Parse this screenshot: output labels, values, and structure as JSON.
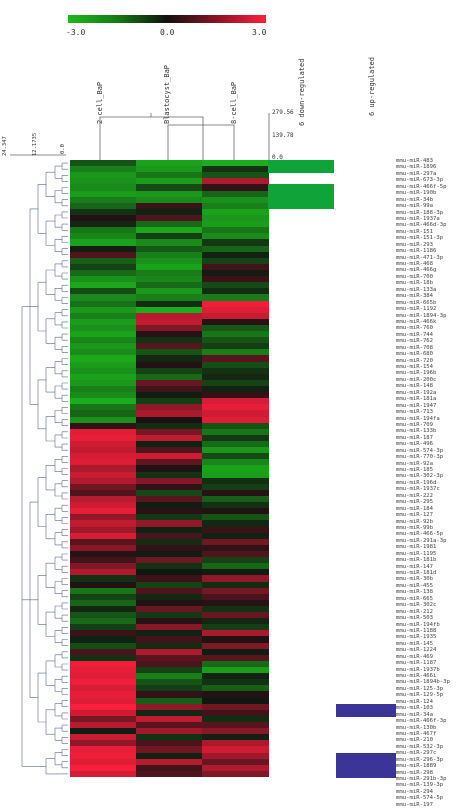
{
  "colorbar": {
    "min_label": "-3.0",
    "mid_label": "0.0",
    "max_label": "3.0",
    "colors": [
      "#1db81d",
      "#111111",
      "#ff1f3c"
    ]
  },
  "columns": [
    "2-cell_BaP",
    "Blastocyst_BaP",
    "8-cell_BaP"
  ],
  "col_dendrogram_ticks": [
    "279.56",
    "139.78",
    "0.0"
  ],
  "row_dendrogram_ticks": [
    "24.347",
    "12.1735",
    "0.0"
  ],
  "regulation_labels": {
    "down": "6 down-regulated",
    "up": "6 up-regulated",
    "down_color": "#10a33a",
    "up_color": "#3a3596"
  },
  "chart_data": {
    "type": "heatmap",
    "title": "",
    "color_scale": [
      -3.0,
      0.0,
      3.0
    ],
    "columns": [
      "2-cell_BaP",
      "Blastocyst_BaP",
      "8-cell_BaP"
    ],
    "rows": [
      "mmu-miR-483",
      "mmu-miR-1896",
      "mmu-miR-297a",
      "mmu-miR-673-3p",
      "mmu-miR-466f-5p",
      "mmu-miR-190b",
      "mmu-miR-34b",
      "mmu-miR-99a",
      "mmu-miR-188-3p",
      "mmu-miR-1937a",
      "mmu-miR-466d-3p",
      "mmu-miR-151",
      "mmu-miR-151-3p",
      "mmu-miR-293",
      "mmu-miR-1186",
      "mmu-miR-471-3p",
      "mmu-miR-468",
      "mmu-miR-466g",
      "mmu-miR-700",
      "mmu-miR-18b",
      "mmu-miR-133a",
      "mmu-miR-384",
      "mmu-miR-665b",
      "mmu-miR-1192",
      "mmu-miR-1894-3p",
      "mmu-miR-466k",
      "mmu-miR-760",
      "mmu-miR-744",
      "mmu-miR-762",
      "mmu-miR-708",
      "mmu-miR-680",
      "mmu-miR-720",
      "mmu-miR-154",
      "mmu-miR-196b",
      "mmu-miR-200c",
      "mmu-miR-148",
      "mmu-miR-192a",
      "mmu-miR-181a",
      "mmu-miR-1947",
      "mmu-miR-713",
      "mmu-miR-194fa",
      "mmu-miR-709",
      "mmu-miR-133b",
      "mmu-miR-187",
      "mmu-miR-496",
      "mmu-miR-574-3p",
      "mmu-miR-770-3p",
      "mmu-miR-92a",
      "mmu-miR-185",
      "mmu-miR-302-3p",
      "mmu-miR-196d",
      "mmu-miR-1937c",
      "mmu-miR-222",
      "mmu-miR-295",
      "mmu-miR-184",
      "mmu-miR-127",
      "mmu-miR-92b",
      "mmu-miR-99b",
      "mmu-miR-466-5p",
      "mmu-miR-291a-3p",
      "mmu-miR-1981",
      "mmu-miR-1195",
      "mmu-miR-181b",
      "mmu-miR-147",
      "mmu-miR-181d",
      "mmu-miR-30b",
      "mmu-miR-455",
      "mmu-miR-138",
      "mmu-miR-665",
      "mmu-miR-302c",
      "mmu-miR-212",
      "mmu-miR-503",
      "mmu-miR-194fb",
      "mmu-miR-1188",
      "mmu-miR-1935",
      "mmu-miR-145",
      "mmu-miR-1224",
      "mmu-miR-469",
      "mmu-miR-1187",
      "mmu-miR-1937b",
      "mmu-miR-466i",
      "mmu-miR-1894b-3p",
      "mmu-miR-125-3p",
      "mmu-miR-129-5p",
      "mmu-miR-124",
      "mmu-miR-103",
      "mmu-miR-34a",
      "mmu-miR-466f-3p",
      "mmu-miR-130b",
      "mmu-miR-467f",
      "mmu-miR-210",
      "mmu-miR-532-3p",
      "mmu-miR-297c",
      "mmu-miR-296-3p",
      "mmu-miR-1889",
      "mmu-miR-298",
      "mmu-miR-291b-3p",
      "mmu-miR-139-3p",
      "mmu-miR-294",
      "mmu-miR-574-5p",
      "mmu-miR-197"
    ],
    "values": [
      [
        -1.2,
        -2.6,
        -2.8
      ],
      [
        -2.0,
        -2.4,
        -0.6
      ],
      [
        -2.4,
        -1.8,
        -1.2
      ],
      [
        -2.3,
        -2.5,
        2.0
      ],
      [
        -2.2,
        -1.0,
        0.4
      ],
      [
        -2.5,
        -2.4,
        -1.5
      ],
      [
        -1.9,
        -2.2,
        -2.3
      ],
      [
        -1.5,
        0.5,
        -2.0
      ],
      [
        -0.6,
        -0.3,
        -2.6
      ],
      [
        0.2,
        0.8,
        -2.4
      ],
      [
        -0.4,
        -1.6,
        -2.5
      ],
      [
        -1.8,
        -2.7,
        -1.8
      ],
      [
        -2.1,
        -0.8,
        -2.2
      ],
      [
        -2.6,
        -2.2,
        -0.7
      ],
      [
        -0.2,
        -1.3,
        -1.5
      ],
      [
        0.8,
        -2.0,
        -0.3
      ],
      [
        -1.4,
        -2.3,
        -0.9
      ],
      [
        -0.9,
        -2.6,
        0.6
      ],
      [
        -1.6,
        -1.9,
        -0.2
      ],
      [
        -2.3,
        -2.1,
        0.5
      ],
      [
        -2.7,
        -1.6,
        -1.0
      ],
      [
        -1.0,
        -2.4,
        -0.5
      ],
      [
        -2.2,
        -2.0,
        -1.9
      ],
      [
        -1.7,
        -0.5,
        2.8
      ],
      [
        -2.4,
        -2.8,
        2.6
      ],
      [
        -2.0,
        2.1,
        2.3
      ],
      [
        -2.5,
        2.2,
        0.3
      ],
      [
        -2.3,
        1.4,
        -1.3
      ],
      [
        -2.6,
        0.3,
        -1.8
      ],
      [
        -2.1,
        -0.6,
        -1.2
      ],
      [
        -2.4,
        0.9,
        -0.8
      ],
      [
        -2.2,
        -1.2,
        -2.0
      ],
      [
        -2.7,
        -0.4,
        0.9
      ],
      [
        -2.5,
        0.2,
        -1.1
      ],
      [
        -2.3,
        -0.9,
        -0.6
      ],
      [
        -2.6,
        -1.6,
        -0.4
      ],
      [
        -2.4,
        1.1,
        -0.9
      ],
      [
        -2.0,
        0.6,
        -0.3
      ],
      [
        -2.2,
        -0.2,
        0.4
      ],
      [
        -2.8,
        -0.8,
        2.5
      ],
      [
        -1.8,
        1.6,
        2.7
      ],
      [
        -1.5,
        1.9,
        2.4
      ],
      [
        -2.3,
        0.1,
        2.6
      ],
      [
        0.4,
        -0.5,
        -1.2
      ],
      [
        2.6,
        1.3,
        -1.8
      ],
      [
        2.7,
        2.2,
        -0.7
      ],
      [
        2.4,
        -0.3,
        -1.6
      ],
      [
        2.2,
        0.8,
        -2.4
      ],
      [
        2.5,
        2.4,
        -1.0
      ],
      [
        2.6,
        1.0,
        -2.1
      ],
      [
        1.9,
        0.2,
        -2.6
      ],
      [
        2.3,
        -0.6,
        -2.5
      ],
      [
        2.0,
        1.5,
        -0.5
      ],
      [
        1.2,
        0.4,
        -0.8
      ],
      [
        0.8,
        -1.0,
        0.3
      ],
      [
        2.1,
        0.9,
        -1.4
      ],
      [
        2.4,
        -0.2,
        -0.6
      ],
      [
        2.7,
        0.3,
        0.2
      ],
      [
        1.6,
        -0.7,
        -1.2
      ],
      [
        2.2,
        1.6,
        -0.4
      ],
      [
        1.8,
        -0.3,
        0.5
      ],
      [
        2.5,
        0.7,
        -0.3
      ],
      [
        0.9,
        -0.5,
        1.2
      ],
      [
        1.5,
        0.4,
        0.4
      ],
      [
        0.3,
        -0.2,
        0.8
      ],
      [
        0.6,
        1.2,
        -0.9
      ],
      [
        1.4,
        -0.6,
        -1.5
      ],
      [
        2.0,
        -0.1,
        -0.2
      ],
      [
        -0.6,
        0.5,
        1.6
      ],
      [
        0.2,
        -0.9,
        -0.5
      ],
      [
        -1.8,
        0.8,
        1.3
      ],
      [
        -0.9,
        -0.4,
        0.7
      ],
      [
        -1.5,
        0.2,
        0.3
      ],
      [
        -0.4,
        1.1,
        -0.6
      ],
      [
        -1.2,
        -0.7,
        1.1
      ],
      [
        -1.6,
        0.3,
        -0.4
      ],
      [
        -0.8,
        1.5,
        -0.8
      ],
      [
        0.5,
        -0.3,
        1.9
      ],
      [
        -0.3,
        0.6,
        0.2
      ],
      [
        -1.1,
        -0.5,
        1.4
      ],
      [
        0.7,
        2.0,
        -0.2
      ],
      [
        -0.6,
        0.9,
        0.9
      ],
      [
        2.8,
        0.7,
        -1.6
      ],
      [
        2.7,
        -0.9,
        -2.5
      ],
      [
        2.6,
        -2.0,
        -0.3
      ],
      [
        2.8,
        -1.2,
        -0.6
      ],
      [
        2.5,
        -0.8,
        -1.4
      ],
      [
        2.7,
        0.4,
        0.2
      ],
      [
        2.6,
        -1.4,
        -0.1
      ],
      [
        2.9,
        1.6,
        1.2
      ],
      [
        2.4,
        -0.4,
        0.6
      ],
      [
        1.3,
        2.2,
        -0.5
      ],
      [
        2.1,
        0.9,
        0.9
      ],
      [
        -0.2,
        1.8,
        1.5
      ],
      [
        2.3,
        -0.6,
        -0.3
      ],
      [
        1.6,
        0.7,
        1.9
      ],
      [
        2.7,
        1.2,
        2.4
      ],
      [
        2.8,
        -0.3,
        1.8
      ],
      [
        2.6,
        2.1,
        1.1
      ],
      [
        2.9,
        0.6,
        2.0
      ],
      [
        2.5,
        0.8,
        1.4
      ]
    ],
    "row_highlights": {
      "down_regulated": [
        "mmu-miR-483",
        "mmu-miR-1896",
        "mmu-miR-466f-5p",
        "mmu-miR-190b",
        "mmu-miR-34b",
        "mmu-miR-99a"
      ],
      "up_regulated": [
        "mmu-miR-467f",
        "mmu-miR-210",
        "mmu-miR-139-3p",
        "mmu-miR-294",
        "mmu-miR-574-5p",
        "mmu-miR-197"
      ]
    }
  }
}
